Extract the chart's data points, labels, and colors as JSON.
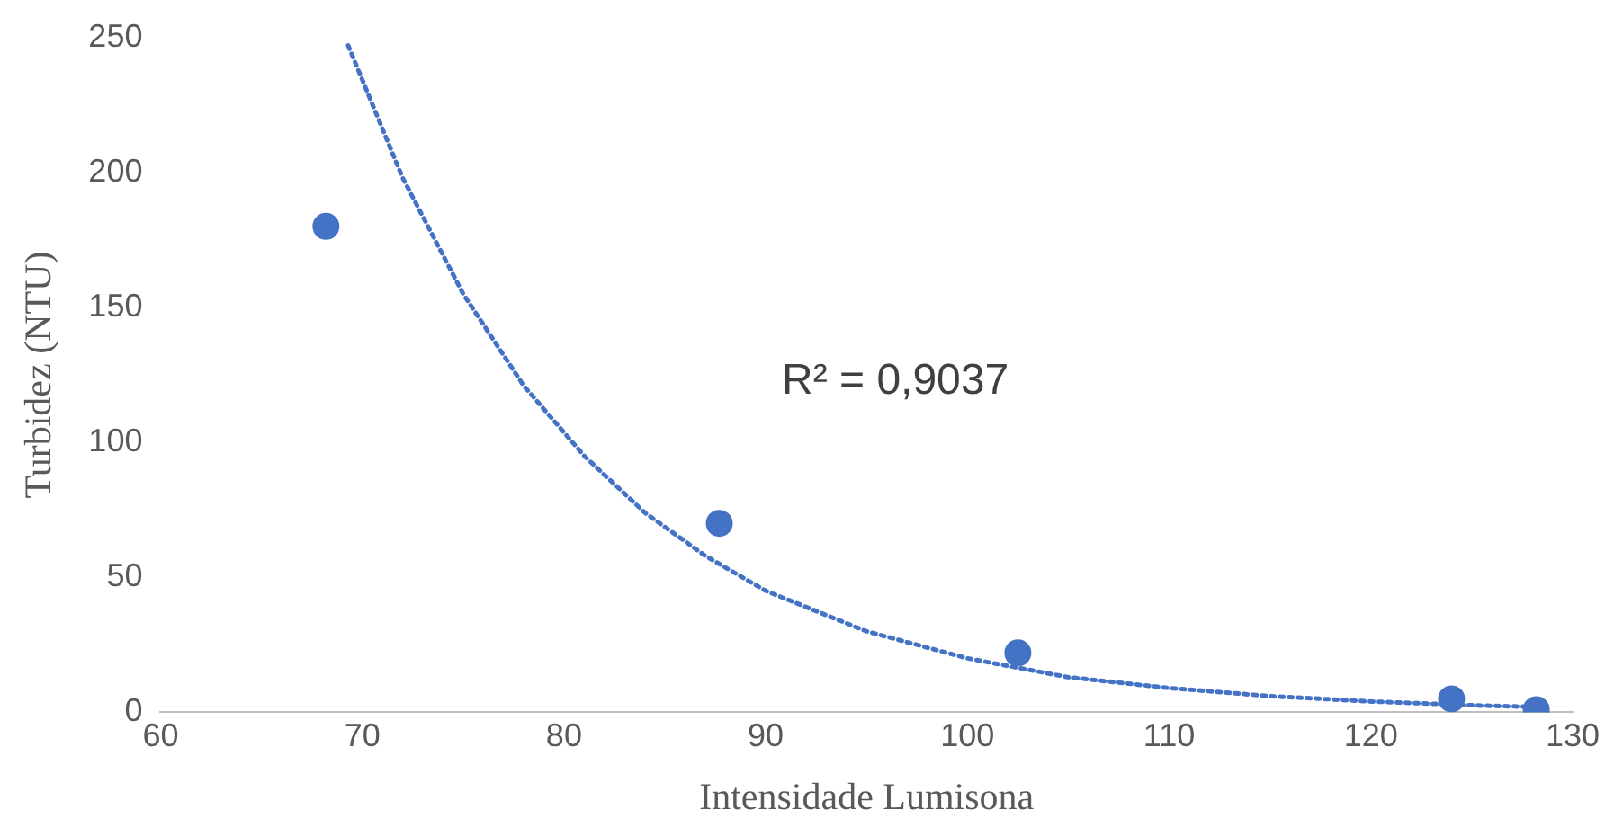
{
  "chart_data": {
    "type": "scatter",
    "xlabel": "Intensidade Lumisona",
    "ylabel": "Turbidez (NTU)",
    "series": [
      {
        "color": "#4472c4",
        "x": [
          68.2,
          87.7,
          102.5,
          124,
          128.2
        ],
        "values": [
          180,
          70,
          22,
          5,
          1
        ]
      },
      {
        "type": "line",
        "color": "#4472c4",
        "line_style": "dotted",
        "marker": "none",
        "x": [
          69.3,
          72,
          75,
          78,
          81,
          84,
          87,
          90,
          95,
          100,
          105,
          110,
          115,
          120,
          125,
          128
        ],
        "values": [
          247,
          198,
          155,
          121,
          95,
          74,
          58,
          45,
          30,
          20,
          13,
          9,
          6,
          4,
          2.6,
          2
        ]
      }
    ],
    "xlim": [
      60,
      130
    ],
    "xticks": [
      60,
      70,
      80,
      90,
      100,
      110,
      120,
      130
    ],
    "ylim": [
      0,
      250
    ],
    "yticks": [
      0,
      50,
      100,
      150,
      200,
      250
    ],
    "grid": false,
    "legend": false,
    "marker": "circle",
    "annotations": [
      "R² = 0,9037"
    ]
  }
}
